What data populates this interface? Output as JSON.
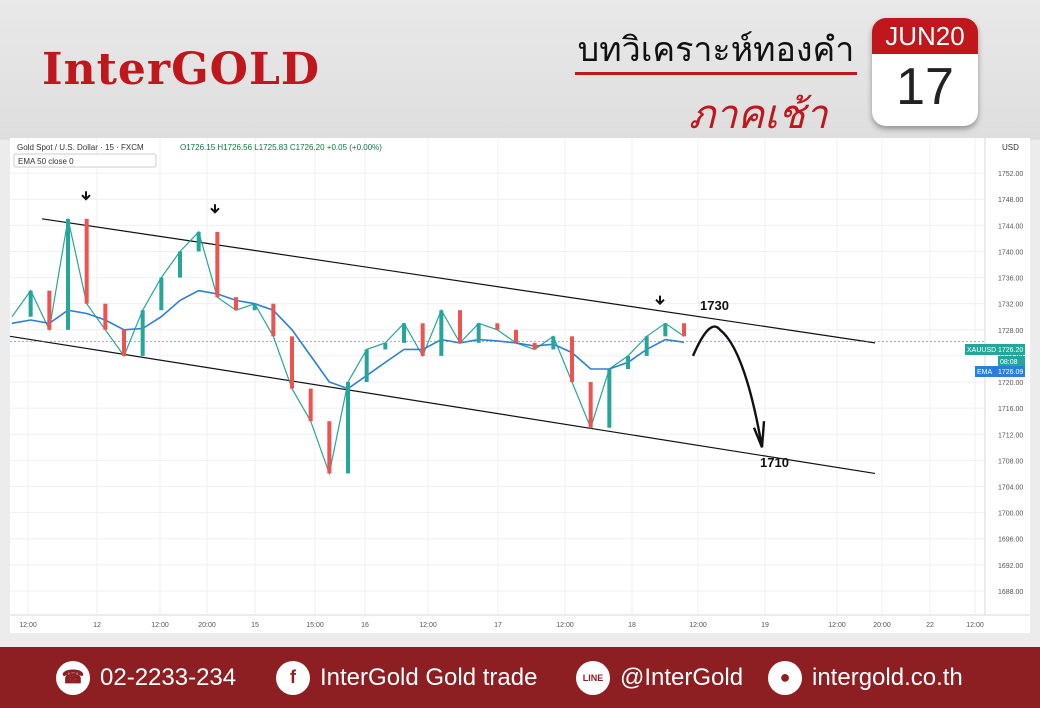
{
  "brand": {
    "logo_text": "InterGOLD",
    "accent": "#c0171c",
    "footer_bg": "#8d1f22"
  },
  "header": {
    "title": "บทวิเคราะห์ทองคำ",
    "subtitle": "ภาคเช้า"
  },
  "calendar": {
    "month": "JUN20",
    "day": "17"
  },
  "chart_header": {
    "symbol": "Gold Spot / U.S. Dollar · 15 · FXCM",
    "ohlc": "O1726.15 H1726.56 L1725.83 C1726.20 +0.05 (+0.00%)",
    "indicator": "EMA 50 close 0"
  },
  "chart_data": {
    "type": "line",
    "ylabel": "USD",
    "ylim": [
      1686,
      1756
    ],
    "y_ticks": [
      1688,
      1692,
      1696,
      1700,
      1704,
      1708,
      1712,
      1716,
      1720,
      1724,
      1728,
      1732,
      1736,
      1740,
      1744,
      1748,
      1752
    ],
    "x_ticks": [
      "12:00",
      "12",
      "12:00",
      "20:00",
      "15",
      "15:00",
      "16",
      "12:00",
      "17",
      "12:00",
      "18",
      "12:00",
      "19",
      "12:00",
      "20:00",
      "22",
      "12:00"
    ],
    "series": [
      {
        "name": "",
        "values": [
          1730,
          1734,
          1728,
          1745,
          1732,
          1728,
          1724,
          1731,
          1736,
          1740,
          1743,
          1733,
          1731,
          1732,
          1727,
          1719,
          1714,
          1706,
          1720,
          1725,
          1726,
          1729,
          1724,
          1731,
          1726,
          1729,
          1728,
          1726,
          1725,
          1727,
          1720,
          1713,
          1722,
          1724,
          1727,
          1729,
          1727
        ]
      },
      {
        "name": "EMA",
        "values": [
          1729,
          1729.5,
          1729,
          1731,
          1730.5,
          1729.5,
          1728,
          1728.2,
          1730,
          1732.5,
          1734,
          1733.5,
          1732.5,
          1732,
          1731,
          1728,
          1724,
          1720,
          1719,
          1721,
          1723,
          1725,
          1725,
          1726.5,
          1726,
          1726.5,
          1726.3,
          1726,
          1725.5,
          1725.8,
          1724.5,
          1722,
          1722,
          1723,
          1725,
          1726.5,
          1726.1
        ]
      }
    ],
    "channel": {
      "upper": [
        [
          0,
          1745
        ],
        [
          1,
          1726
        ]
      ],
      "lower": [
        [
          0,
          1727
        ],
        [
          1,
          1706
        ]
      ]
    },
    "annotations": [
      "1730",
      "1710"
    ],
    "last_price_label": "XAUUSD",
    "last_price": "1726.20",
    "countdown": "08:08",
    "ema_label": "EMA",
    "ema_value": "1726.09",
    "grid": true
  },
  "footer": {
    "phone": "02-2233-234",
    "facebook": "InterGold Gold trade",
    "line": "@InterGold",
    "web": "intergold.co.th",
    "icons": [
      "phone-icon",
      "facebook-icon",
      "line-icon",
      "globe-icon"
    ]
  }
}
